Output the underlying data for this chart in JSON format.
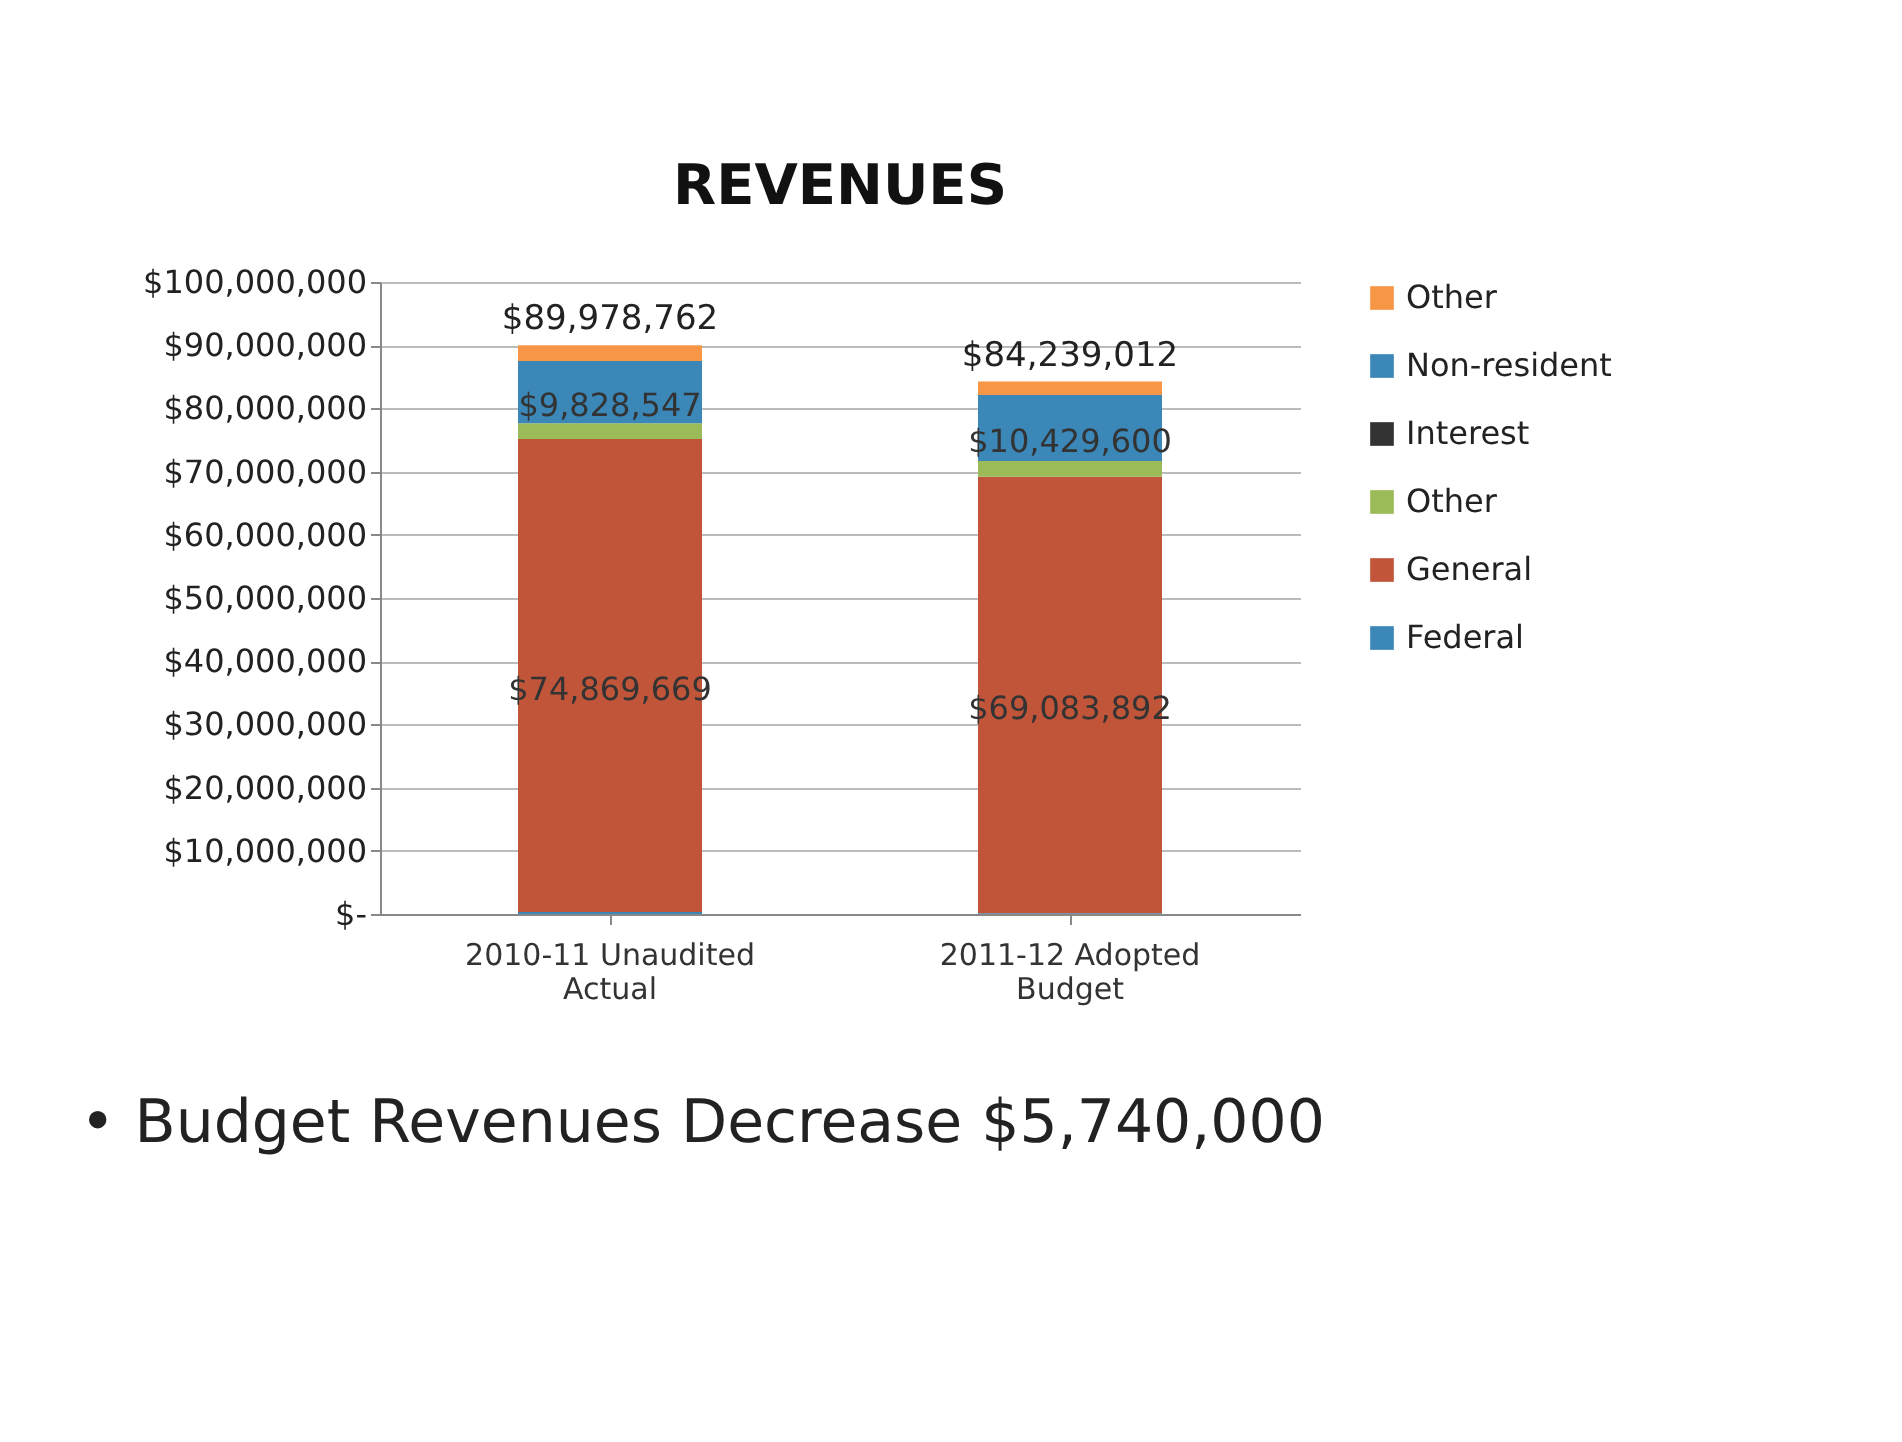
{
  "chart_data": {
    "type": "bar",
    "title": "REVENUES",
    "stacked": true,
    "categories": [
      "2010-11 Unaudited Actual",
      "2011-12 Adopted Budget"
    ],
    "series": [
      {
        "name": "Federal",
        "color": "#3a87b8",
        "values": [
          300000,
          100000
        ]
      },
      {
        "name": "General",
        "color": "#c0553a",
        "values": [
          74869669,
          69083892
        ],
        "value_labels": [
          "$74,869,669",
          "$69,083,892"
        ]
      },
      {
        "name": "Other",
        "color": "#9bbb59",
        "values": [
          2500000,
          2500000
        ]
      },
      {
        "name": "Interest",
        "color": "#333333",
        "values": [
          null,
          null
        ]
      },
      {
        "name": "Non-resident",
        "color": "#3a87b8",
        "values": [
          9828547,
          10429600
        ],
        "value_labels": [
          "$9,828,547",
          "$10,429,600"
        ]
      },
      {
        "name": "Other",
        "color": "#f79646",
        "values": [
          2480546,
          2125520
        ]
      }
    ],
    "totals": [
      "$89,978,762",
      "$84,239,012"
    ],
    "ylim": [
      0,
      100000000
    ],
    "yticks": [
      {
        "value": 0,
        "label": "$-"
      },
      {
        "value": 10000000,
        "label": "$10,000,000"
      },
      {
        "value": 20000000,
        "label": "$20,000,000"
      },
      {
        "value": 30000000,
        "label": "$30,000,000"
      },
      {
        "value": 40000000,
        "label": "$40,000,000"
      },
      {
        "value": 50000000,
        "label": "$50,000,000"
      },
      {
        "value": 60000000,
        "label": "$60,000,000"
      },
      {
        "value": 70000000,
        "label": "$70,000,000"
      },
      {
        "value": 80000000,
        "label": "$80,000,000"
      },
      {
        "value": 90000000,
        "label": "$90,000,000"
      },
      {
        "value": 100000000,
        "label": "$100,000,000"
      }
    ],
    "grid": "y",
    "legend": "right",
    "annotations": [
      "• Budget Revenues Decrease $5,740,000"
    ]
  }
}
